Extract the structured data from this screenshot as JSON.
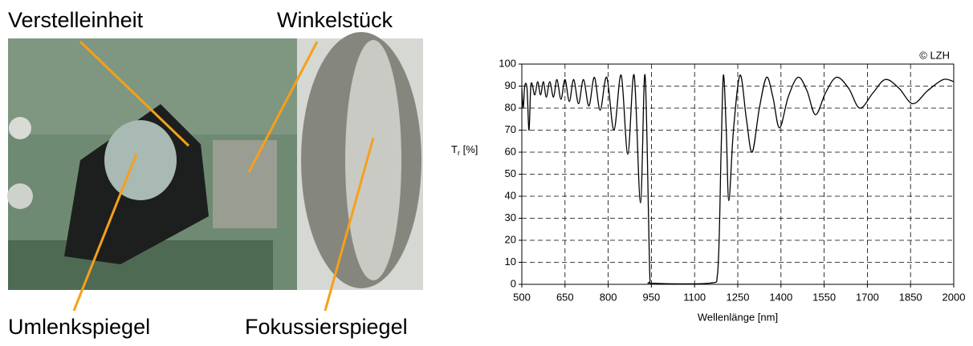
{
  "photo": {
    "labels": [
      "Verstelleinheit",
      "Winkelstück",
      "Umlenkspiegel",
      "Fokussierspiegel"
    ]
  },
  "chart_data": {
    "type": "line",
    "xlabel": "Wellenlänge [nm]",
    "ylabel": {
      "main": "T",
      "sub": "r",
      "unit": "[%]"
    },
    "annotation": "© LZH",
    "xlim": [
      500,
      2000
    ],
    "ylim": [
      0,
      100
    ],
    "xticks": [
      500,
      650,
      800,
      950,
      1100,
      1250,
      1400,
      1550,
      1700,
      1850,
      2000
    ],
    "yticks": [
      0,
      10,
      20,
      30,
      40,
      50,
      60,
      70,
      80,
      90,
      100
    ],
    "grid": true,
    "series": [
      {
        "color": "#000000",
        "x": [
          500,
          505,
          510,
          518,
          525,
          532,
          545,
          555,
          565,
          575,
          585,
          597,
          610,
          622,
          636,
          650,
          665,
          680,
          697,
          714,
          733,
          752,
          772,
          795,
          820,
          845,
          868,
          890,
          912,
          928,
          945,
          955,
          1150,
          1180,
          1192,
          1200,
          1210,
          1219,
          1235,
          1258,
          1280,
          1300,
          1325,
          1350,
          1372,
          1395,
          1425,
          1459,
          1490,
          1520,
          1555,
          1593,
          1635,
          1674,
          1720,
          1763,
          1810,
          1858,
          1910,
          1964,
          2000
        ],
        "values": [
          89,
          80,
          90,
          89,
          70,
          91,
          86,
          92,
          86,
          92,
          85,
          92,
          85,
          93,
          84,
          93,
          83,
          93,
          82,
          93,
          81,
          94,
          79,
          94,
          70,
          95,
          59,
          95,
          37,
          95,
          2,
          0.5,
          0.5,
          5,
          60,
          95,
          70,
          38,
          70,
          95,
          75,
          60,
          80,
          94,
          85,
          71,
          85,
          94,
          88,
          77,
          87,
          94,
          89,
          80,
          87,
          93,
          89,
          82,
          88,
          93,
          92
        ]
      }
    ]
  }
}
